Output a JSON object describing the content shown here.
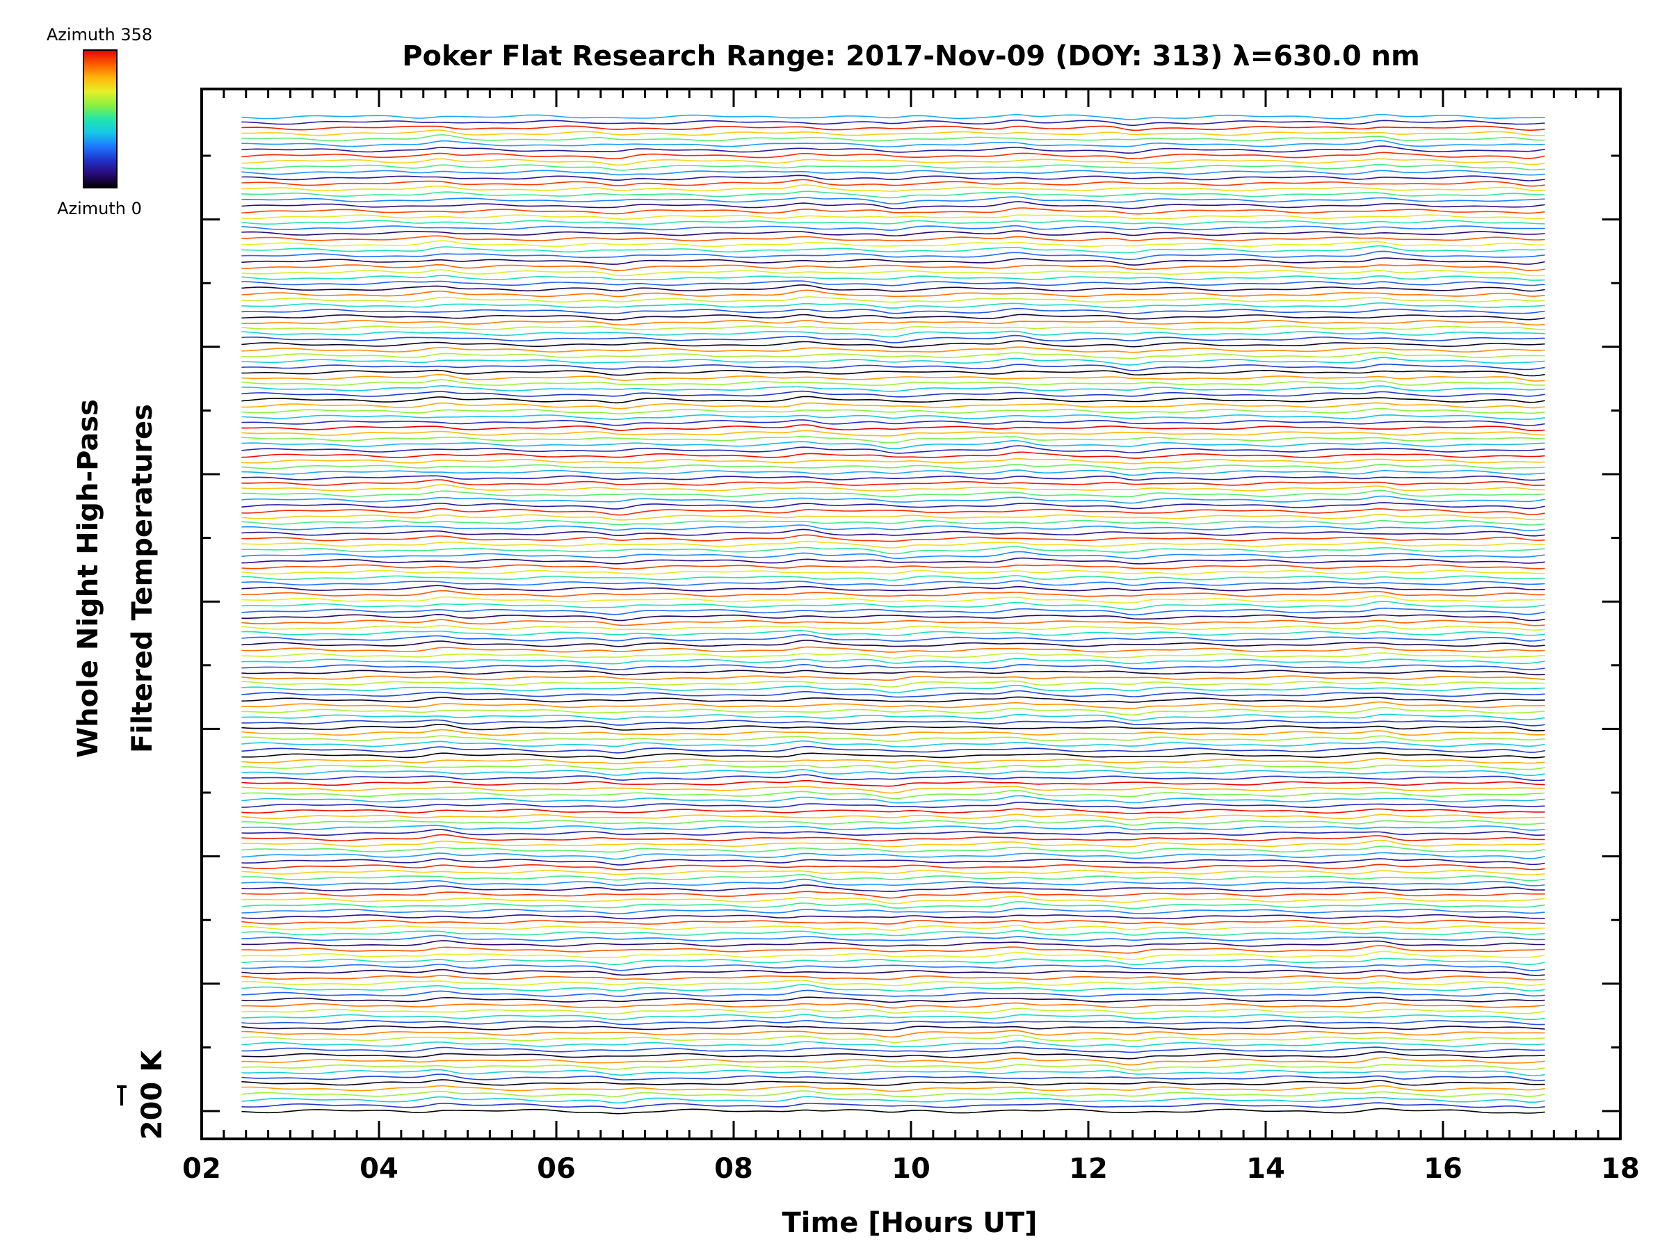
{
  "chart_data": {
    "type": "line",
    "title": "Poker Flat Research Range: 2017-Nov-09 (DOY: 313) λ=630.0 nm",
    "xlabel": "Time [Hours UT]",
    "ylabel_lines": [
      "Whole Night High-Pass",
      "Filtered Temperatures"
    ],
    "scale_bar_label": "200 K",
    "xlim": [
      2,
      18
    ],
    "x_ticks": [
      "02",
      "04",
      "06",
      "08",
      "10",
      "12",
      "14",
      "16",
      "18"
    ],
    "x_start": 2.45,
    "x_end": 17.15,
    "n_traces": 180,
    "azimuth_step": 2,
    "azimuth_range": [
      0,
      358
    ],
    "colormap": [
      "#000000",
      "#2a0a7a",
      "#1f32c8",
      "#1e78ff",
      "#16c8e6",
      "#22e6aa",
      "#8cf040",
      "#e6f028",
      "#ffb40a",
      "#ff5a00",
      "#e60000"
    ],
    "colorbar": {
      "top_label": "Azimuth 358",
      "bottom_label": "Azimuth 0"
    },
    "series_note_features_hours": [
      4.7,
      6.7,
      8.8,
      9.8,
      11.2,
      12.5,
      15.3,
      17.0
    ],
    "grid": false
  }
}
